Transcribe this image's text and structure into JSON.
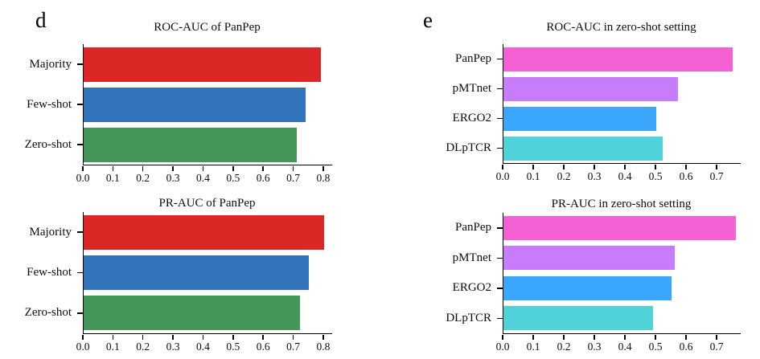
{
  "figure": {
    "panel_d_label": "d",
    "panel_e_label": "e",
    "background_color": "#ffffff",
    "axis_color": "#000000"
  },
  "chart_data": [
    {
      "type": "bar",
      "orientation": "horizontal",
      "title": "ROC-AUC of PanPep",
      "categories": [
        "Majority",
        "Few-shot",
        "Zero-shot"
      ],
      "values": [
        0.79,
        0.74,
        0.71
      ],
      "colors": [
        "#dc2727",
        "#3274bc",
        "#449659"
      ],
      "xtick_labels": [
        "0.0",
        "0.1",
        "0.2",
        "0.3",
        "0.4",
        "0.5",
        "0.6",
        "0.7",
        "0.8"
      ],
      "xticks": [
        0.0,
        0.1,
        0.2,
        0.3,
        0.4,
        0.5,
        0.6,
        0.7,
        0.8
      ],
      "xlim": [
        0,
        0.827
      ],
      "grid": false,
      "legend": null
    },
    {
      "type": "bar",
      "orientation": "horizontal",
      "title": "PR-AUC of PanPep",
      "categories": [
        "Majority",
        "Few-shot",
        "Zero-shot"
      ],
      "values": [
        0.8,
        0.75,
        0.72
      ],
      "colors": [
        "#dc2727",
        "#3274bc",
        "#449659"
      ],
      "xtick_labels": [
        "0.0",
        "0.1",
        "0.2",
        "0.3",
        "0.4",
        "0.5",
        "0.6",
        "0.7",
        "0.8"
      ],
      "xticks": [
        0.0,
        0.1,
        0.2,
        0.3,
        0.4,
        0.5,
        0.6,
        0.7,
        0.8
      ],
      "xlim": [
        0,
        0.827
      ],
      "grid": false,
      "legend": null
    },
    {
      "type": "bar",
      "orientation": "horizontal",
      "title": "ROC-AUC in zero-shot setting",
      "categories": [
        "PanPep",
        "pMTnet",
        "ERGO2",
        "DLpTCR"
      ],
      "values": [
        0.75,
        0.57,
        0.5,
        0.52
      ],
      "colors": [
        "#f361d5",
        "#c77dfb",
        "#3aa6fc",
        "#4fd3d8"
      ],
      "xtick_labels": [
        "0.0",
        "0.1",
        "0.2",
        "0.3",
        "0.4",
        "0.5",
        "0.6",
        "0.7"
      ],
      "xticks": [
        0.0,
        0.1,
        0.2,
        0.3,
        0.4,
        0.5,
        0.6,
        0.7
      ],
      "xlim": [
        0,
        0.776
      ],
      "grid": false,
      "legend": null
    },
    {
      "type": "bar",
      "orientation": "horizontal",
      "title": "PR-AUC in zero-shot setting",
      "categories": [
        "PanPep",
        "pMTnet",
        "ERGO2",
        "DLpTCR"
      ],
      "values": [
        0.76,
        0.56,
        0.55,
        0.49
      ],
      "colors": [
        "#f361d5",
        "#c77dfb",
        "#3aa6fc",
        "#4fd3d8"
      ],
      "xtick_labels": [
        "0.0",
        "0.1",
        "0.2",
        "0.3",
        "0.4",
        "0.5",
        "0.6",
        "0.7"
      ],
      "xticks": [
        0.0,
        0.1,
        0.2,
        0.3,
        0.4,
        0.5,
        0.6,
        0.7
      ],
      "xlim": [
        0,
        0.776
      ],
      "grid": false,
      "legend": null
    }
  ]
}
